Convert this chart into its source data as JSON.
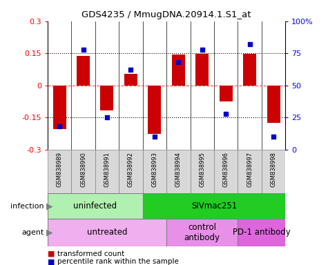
{
  "title": "GDS4235 / MmugDNA.20914.1.S1_at",
  "samples": [
    "GSM838989",
    "GSM838990",
    "GSM838991",
    "GSM838992",
    "GSM838993",
    "GSM838994",
    "GSM838995",
    "GSM838996",
    "GSM838997",
    "GSM838998"
  ],
  "bar_values": [
    -0.205,
    0.138,
    -0.115,
    0.055,
    -0.225,
    0.143,
    0.148,
    -0.075,
    0.147,
    -0.175
  ],
  "dot_values": [
    18,
    78,
    25,
    62,
    10,
    68,
    78,
    28,
    82,
    10
  ],
  "bar_color": "#cc0000",
  "dot_color": "#0000cc",
  "ylim": [
    -0.3,
    0.3
  ],
  "y2lim": [
    0,
    100
  ],
  "yticks": [
    -0.3,
    -0.15,
    0,
    0.15,
    0.3
  ],
  "ytick_labels": [
    "-0.3",
    "-0.15",
    "0",
    "0.15",
    "0.3"
  ],
  "y2ticks": [
    0,
    25,
    50,
    75,
    100
  ],
  "y2tick_labels": [
    "0",
    "25",
    "50",
    "75",
    "100%"
  ],
  "hlines_dotted": [
    -0.15,
    0.15
  ],
  "hline_zero_color": "#ff4444",
  "infection_groups": [
    {
      "label": "uninfected",
      "start": 0,
      "end": 4,
      "color": "#b0f0b0"
    },
    {
      "label": "SIVmac251",
      "start": 4,
      "end": 10,
      "color": "#22cc22"
    }
  ],
  "agent_groups": [
    {
      "label": "untreated",
      "start": 0,
      "end": 5,
      "color": "#f0b0f0"
    },
    {
      "label": "control\nantibody",
      "start": 5,
      "end": 8,
      "color": "#e890e8"
    },
    {
      "label": "PD-1 antibody",
      "start": 8,
      "end": 10,
      "color": "#dd66dd"
    }
  ],
  "infection_label": "infection",
  "agent_label": "agent",
  "legend_bar": "transformed count",
  "legend_dot": "percentile rank within the sample",
  "dot_size": 25,
  "bar_width": 0.55
}
